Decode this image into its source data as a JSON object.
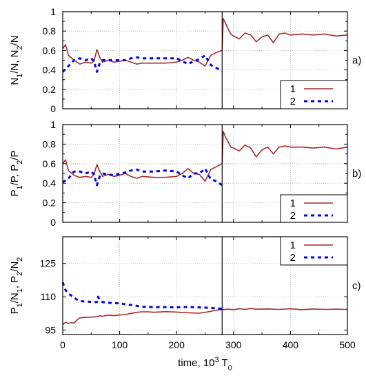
{
  "chart_data": [
    {
      "type": "line",
      "panel_label": "a)",
      "ylabel_parts": [
        [
          "N",
          ""
        ],
        [
          "1",
          "sub"
        ],
        [
          "/N, N",
          ""
        ],
        [
          "2",
          "sub"
        ],
        [
          "/N",
          ""
        ]
      ],
      "xlim": [
        0,
        500
      ],
      "ylim": [
        0,
        1
      ],
      "yticks": [
        "0",
        "0.2",
        "0.4",
        "0.6",
        "0.8",
        "1"
      ],
      "xticks": [
        "0",
        "100",
        "200",
        "300",
        "400",
        "500"
      ],
      "show_xtick_labels": false,
      "grid": true,
      "vline_x": 280,
      "legend": {
        "placement": "bottom-right"
      },
      "series": [
        {
          "name": "1",
          "color": "#a52a2a",
          "style": "solid",
          "x": [
            0,
            5,
            10,
            20,
            30,
            40,
            50,
            55,
            60,
            65,
            70,
            80,
            90,
            100,
            110,
            120,
            130,
            140,
            160,
            180,
            200,
            210,
            220,
            230,
            240,
            250,
            260,
            270,
            280,
            282,
            286,
            290,
            295,
            300,
            310,
            320,
            330,
            340,
            350,
            360,
            370,
            380,
            390,
            400,
            420,
            440,
            460,
            480,
            500
          ],
          "y": [
            0.62,
            0.66,
            0.55,
            0.5,
            0.46,
            0.48,
            0.47,
            0.49,
            0.61,
            0.53,
            0.48,
            0.5,
            0.48,
            0.49,
            0.5,
            0.48,
            0.46,
            0.47,
            0.47,
            0.47,
            0.48,
            0.5,
            0.53,
            0.5,
            0.48,
            0.44,
            0.55,
            0.58,
            0.6,
            0.93,
            0.88,
            0.83,
            0.77,
            0.75,
            0.72,
            0.78,
            0.76,
            0.69,
            0.74,
            0.76,
            0.68,
            0.77,
            0.78,
            0.76,
            0.77,
            0.76,
            0.77,
            0.75,
            0.76
          ]
        },
        {
          "name": "2",
          "color": "#0000ee",
          "style": "dashed",
          "x": [
            0,
            10,
            20,
            30,
            40,
            50,
            55,
            60,
            65,
            70,
            80,
            90,
            100,
            110,
            120,
            130,
            140,
            160,
            180,
            200,
            210,
            220,
            230,
            240,
            250,
            260,
            270,
            280
          ],
          "y": [
            0.38,
            0.44,
            0.5,
            0.52,
            0.5,
            0.52,
            0.49,
            0.38,
            0.47,
            0.5,
            0.5,
            0.5,
            0.5,
            0.5,
            0.52,
            0.53,
            0.52,
            0.52,
            0.52,
            0.52,
            0.49,
            0.46,
            0.49,
            0.51,
            0.55,
            0.45,
            0.42,
            0.39
          ]
        }
      ]
    },
    {
      "type": "line",
      "panel_label": "b)",
      "ylabel_parts": [
        [
          "P",
          ""
        ],
        [
          "1",
          "sub"
        ],
        [
          "/P, P",
          ""
        ],
        [
          "2",
          "sub"
        ],
        [
          "/P",
          ""
        ]
      ],
      "xlim": [
        0,
        500
      ],
      "ylim": [
        0,
        1
      ],
      "yticks": [
        "0",
        "0.2",
        "0.4",
        "0.6",
        "0.8",
        "1"
      ],
      "xticks": [
        "0",
        "100",
        "200",
        "300",
        "400",
        "500"
      ],
      "show_xtick_labels": false,
      "grid": true,
      "vline_x": 280,
      "legend": {
        "placement": "bottom-right"
      },
      "series": [
        {
          "name": "1",
          "color": "#a52a2a",
          "style": "solid",
          "x": [
            0,
            5,
            10,
            20,
            30,
            40,
            50,
            55,
            60,
            65,
            70,
            80,
            90,
            100,
            110,
            120,
            130,
            140,
            160,
            180,
            200,
            210,
            220,
            230,
            240,
            250,
            260,
            270,
            280,
            282,
            286,
            290,
            295,
            300,
            310,
            320,
            330,
            340,
            350,
            360,
            370,
            380,
            390,
            400,
            420,
            440,
            460,
            480,
            500
          ],
          "y": [
            0.6,
            0.64,
            0.53,
            0.48,
            0.46,
            0.47,
            0.46,
            0.49,
            0.59,
            0.52,
            0.47,
            0.49,
            0.47,
            0.48,
            0.5,
            0.47,
            0.45,
            0.47,
            0.46,
            0.46,
            0.47,
            0.5,
            0.55,
            0.5,
            0.49,
            0.42,
            0.54,
            0.57,
            0.6,
            0.93,
            0.87,
            0.83,
            0.77,
            0.76,
            0.73,
            0.79,
            0.76,
            0.67,
            0.74,
            0.77,
            0.7,
            0.77,
            0.78,
            0.77,
            0.77,
            0.76,
            0.77,
            0.75,
            0.77
          ]
        },
        {
          "name": "2",
          "color": "#0000ee",
          "style": "dashed",
          "x": [
            0,
            10,
            20,
            30,
            40,
            50,
            55,
            60,
            65,
            70,
            80,
            90,
            100,
            110,
            120,
            130,
            140,
            160,
            180,
            200,
            210,
            220,
            230,
            240,
            250,
            260,
            270,
            280
          ],
          "y": [
            0.41,
            0.45,
            0.52,
            0.52,
            0.5,
            0.52,
            0.49,
            0.38,
            0.47,
            0.5,
            0.49,
            0.48,
            0.5,
            0.51,
            0.53,
            0.54,
            0.52,
            0.52,
            0.53,
            0.52,
            0.48,
            0.45,
            0.5,
            0.5,
            0.55,
            0.44,
            0.42,
            0.38
          ]
        }
      ]
    },
    {
      "type": "line",
      "panel_label": "c)",
      "ylabel_parts": [
        [
          "P",
          ""
        ],
        [
          "1",
          "sub"
        ],
        [
          "/N",
          ""
        ],
        [
          "1",
          "sub"
        ],
        [
          ", P",
          ""
        ],
        [
          "2",
          "sub"
        ],
        [
          "/N",
          ""
        ],
        [
          "2",
          "sub"
        ]
      ],
      "xlim": [
        0,
        500
      ],
      "ylim": [
        93,
        137
      ],
      "yticks": [
        "95",
        "110",
        "125"
      ],
      "ytick_values": [
        95,
        110,
        125
      ],
      "xticks": [
        "0",
        "100",
        "200",
        "300",
        "400",
        "500"
      ],
      "show_xtick_labels": true,
      "xlabel_parts": [
        [
          "time, 10",
          ""
        ],
        [
          "3",
          "sup"
        ],
        [
          " T",
          ""
        ],
        [
          "0",
          "sub"
        ]
      ],
      "grid": true,
      "vline_x": 280,
      "legend": {
        "placement": "top-right"
      },
      "series": [
        {
          "name": "1",
          "color": "#a52a2a",
          "style": "solid",
          "x": [
            0,
            5,
            10,
            15,
            20,
            25,
            30,
            40,
            50,
            60,
            65,
            70,
            80,
            90,
            100,
            110,
            120,
            130,
            140,
            150,
            160,
            180,
            200,
            220,
            240,
            260,
            270,
            280,
            290,
            300,
            310,
            320,
            330,
            340,
            360,
            380,
            400,
            420,
            440,
            460,
            480,
            500
          ],
          "y": [
            97.5,
            98.5,
            98,
            98.3,
            98.2,
            99.5,
            100.5,
            100.7,
            100.8,
            101,
            101.5,
            101.2,
            101.7,
            101.5,
            101.8,
            102,
            102.5,
            103,
            103.2,
            103.2,
            103,
            103.3,
            103.1,
            102.8,
            102.6,
            103.4,
            104,
            104.2,
            104.4,
            104.2,
            104.6,
            104.3,
            104.7,
            104.4,
            104.5,
            104.3,
            104.6,
            104.2,
            104.5,
            104.3,
            104.4,
            104.3
          ]
        },
        {
          "name": "2",
          "color": "#0000ee",
          "style": "dashed",
          "x": [
            0,
            5,
            10,
            15,
            20,
            30,
            40,
            50,
            60,
            62,
            65,
            70,
            80,
            100,
            120,
            140,
            160,
            180,
            200,
            220,
            240,
            260,
            270,
            280
          ],
          "y": [
            116.5,
            113,
            111.5,
            110.5,
            109.5,
            108,
            107.9,
            107.7,
            107.6,
            110,
            108.5,
            107.6,
            107.3,
            107,
            106.3,
            105.5,
            105.3,
            105.3,
            105.2,
            105.4,
            105.2,
            105,
            104.8,
            104.6
          ]
        }
      ]
    }
  ]
}
